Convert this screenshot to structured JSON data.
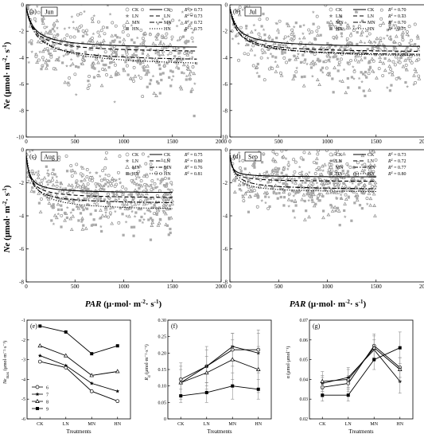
{
  "chart_data": [
    {
      "type": "scatter",
      "panel": "(a)",
      "month": "Jun",
      "xlim": [
        0,
        2000
      ],
      "ylim": [
        -10,
        0
      ],
      "xticks": [
        0,
        500,
        1000,
        1500,
        2000
      ],
      "yticks": [
        0,
        -2,
        -4,
        -6,
        -8,
        -10
      ],
      "legend_position": "top-right",
      "series": [
        {
          "name": "CK",
          "marker": "circle-open",
          "line": "solid",
          "r2": "0.73",
          "ne_max": 3.1,
          "alpha": 0.036,
          "rd": 0.11,
          "x_end": 1750
        },
        {
          "name": "LN",
          "marker": "star",
          "line": "dashed",
          "r2": "0.73",
          "ne_max": 3.4,
          "alpha": 0.038,
          "rd": 0.12,
          "x_end": 1750
        },
        {
          "name": "MN",
          "marker": "triangle-open",
          "line": "dashdot",
          "r2": "0.72",
          "ne_max": 4.1,
          "alpha": 0.039,
          "rd": 0.11,
          "x_end": 1750
        },
        {
          "name": "HN",
          "marker": "square-filled",
          "line": "dotted",
          "r2": "0.75",
          "ne_max": 4.6,
          "alpha": 0.032,
          "rd": 0.07,
          "x_end": 1750
        }
      ]
    },
    {
      "type": "scatter",
      "panel": "(b)",
      "month": "Jul",
      "xlim": [
        0,
        2000
      ],
      "ylim": [
        -10,
        0
      ],
      "xticks": [
        0,
        500,
        1000,
        1500,
        2000
      ],
      "yticks": [
        0,
        -2,
        -4,
        -6,
        -8,
        -10
      ],
      "legend_position": "top-right",
      "series": [
        {
          "name": "CK",
          "marker": "circle-open",
          "line": "solid",
          "r2": "0.70",
          "ne_max": 3.0,
          "alpha": 0.038,
          "rd": 0.12,
          "x_end": 1950
        },
        {
          "name": "LN",
          "marker": "star",
          "line": "dashed",
          "r2": "0.73",
          "ne_max": 3.3,
          "alpha": 0.041,
          "rd": 0.16,
          "x_end": 1950
        },
        {
          "name": "MN",
          "marker": "triangle-open",
          "line": "dashdot",
          "r2": "0.70",
          "ne_max": 3.6,
          "alpha": 0.04,
          "rd": 0.14,
          "x_end": 1950
        },
        {
          "name": "HN",
          "marker": "square-filled",
          "line": "dotted",
          "r2": "0.75",
          "ne_max": 3.9,
          "alpha": 0.032,
          "rd": 0.08,
          "x_end": 1950
        }
      ]
    },
    {
      "type": "scatter",
      "panel": "(c)",
      "month": "Aug",
      "xlim": [
        0,
        2000
      ],
      "ylim": [
        -8,
        0
      ],
      "xticks": [
        0,
        500,
        1000,
        1500,
        2000
      ],
      "yticks": [
        0,
        -2,
        -4,
        -6,
        -8
      ],
      "legend_position": "top-right",
      "series": [
        {
          "name": "CK",
          "marker": "circle-open",
          "line": "solid",
          "r2": "0.75",
          "ne_max": 2.2,
          "alpha": 0.056,
          "rd": 0.2,
          "x_end": 1500
        },
        {
          "name": "LN",
          "marker": "star",
          "line": "dashed",
          "r2": "0.80",
          "ne_max": 2.5,
          "alpha": 0.055,
          "rd": 0.21,
          "x_end": 1500
        },
        {
          "name": "MN",
          "marker": "triangle-open",
          "line": "dashdot",
          "r2": "0.76",
          "ne_max": 2.9,
          "alpha": 0.057,
          "rd": 0.18,
          "x_end": 1500
        },
        {
          "name": "HN",
          "marker": "square-filled",
          "line": "dotted",
          "r2": "0.81",
          "ne_max": 3.5,
          "alpha": 0.05,
          "rd": 0.1,
          "x_end": 1500
        }
      ]
    },
    {
      "type": "scatter",
      "panel": "(d)",
      "month": "Sep",
      "xlim": [
        0,
        2000
      ],
      "ylim": [
        -8,
        0
      ],
      "xticks": [
        0,
        500,
        1000,
        1500,
        2000
      ],
      "yticks": [
        0,
        -2,
        -4,
        -6,
        -8
      ],
      "legend_position": "top-right",
      "series": [
        {
          "name": "CK",
          "marker": "circle-open",
          "line": "solid",
          "r2": "0.73",
          "ne_max": 1.2,
          "alpha": 0.046,
          "rd": 0.21,
          "x_end": 1500
        },
        {
          "name": "LN",
          "marker": "star",
          "line": "dashed",
          "r2": "0.72",
          "ne_max": 1.5,
          "alpha": 0.045,
          "rd": 0.2,
          "x_end": 1500
        },
        {
          "name": "MN",
          "marker": "triangle-open",
          "line": "dashdot",
          "r2": "0.77",
          "ne_max": 2.1,
          "alpha": 0.039,
          "rd": 0.15,
          "x_end": 1500
        },
        {
          "name": "HN",
          "marker": "square-filled",
          "line": "dotted",
          "r2": "0.80",
          "ne_max": 2.4,
          "alpha": 0.056,
          "rd": 0.09,
          "x_end": 1500
        }
      ]
    },
    {
      "type": "line",
      "panel": "(e)",
      "categories": [
        "CK",
        "LN",
        "MN",
        "HN"
      ],
      "ylim": [
        -6,
        -1
      ],
      "yticks": [
        -1,
        -2,
        -3,
        -4,
        -5,
        -6
      ],
      "xlabel": "Treatments",
      "legend_position": "bottom-left",
      "series": [
        {
          "name": "6",
          "marker": "circle-open",
          "values": [
            -3.1,
            -3.4,
            -4.6,
            -5.1
          ]
        },
        {
          "name": "7",
          "marker": "star",
          "values": [
            -2.8,
            -3.3,
            -4.2,
            -4.6
          ]
        },
        {
          "name": "8",
          "marker": "triangle-open",
          "values": [
            -2.3,
            -2.8,
            -3.8,
            -3.6
          ]
        },
        {
          "name": "9",
          "marker": "square-filled",
          "values": [
            -1.3,
            -1.6,
            -2.7,
            -2.3
          ]
        }
      ]
    },
    {
      "type": "line",
      "panel": "(f)",
      "categories": [
        "CK",
        "LN",
        "MN",
        "HN"
      ],
      "ylim": [
        0.0,
        0.3
      ],
      "yticks": [
        0.0,
        0.05,
        0.1,
        0.15,
        0.2,
        0.25,
        0.3
      ],
      "xlabel": "Treatments",
      "series": [
        {
          "name": "6",
          "marker": "circle-open",
          "values": [
            0.12,
            0.16,
            0.21,
            0.21
          ],
          "err": [
            0.05,
            0.05,
            0.05,
            0.06
          ]
        },
        {
          "name": "7",
          "marker": "star",
          "values": [
            0.11,
            0.16,
            0.22,
            0.2
          ],
          "err": [
            0.04,
            0.06,
            0.04,
            0.06
          ]
        },
        {
          "name": "8",
          "marker": "triangle-open",
          "values": [
            0.11,
            0.14,
            0.18,
            0.15
          ],
          "err": [
            0.05,
            0.05,
            0.06,
            0.07
          ]
        },
        {
          "name": "9",
          "marker": "square-filled",
          "values": [
            0.07,
            0.08,
            0.1,
            0.09
          ],
          "err": [
            0.02,
            0.03,
            0.04,
            0.03
          ]
        }
      ]
    },
    {
      "type": "line",
      "panel": "(g)",
      "categories": [
        "CK",
        "LN",
        "MN",
        "HN"
      ],
      "ylim": [
        0.02,
        0.07
      ],
      "yticks": [
        0.02,
        0.03,
        0.04,
        0.05,
        0.06,
        0.07
      ],
      "xlabel": "Treatments",
      "series": [
        {
          "name": "6",
          "marker": "circle-open",
          "values": [
            0.036,
            0.038,
            0.057,
            0.046
          ],
          "err": [
            0.005,
            0.004,
            0.006,
            0.005
          ]
        },
        {
          "name": "7",
          "marker": "star",
          "values": [
            0.038,
            0.041,
            0.055,
            0.039
          ],
          "err": [
            0.004,
            0.005,
            0.005,
            0.006
          ]
        },
        {
          "name": "8",
          "marker": "triangle-open",
          "values": [
            0.039,
            0.04,
            0.056,
            0.045
          ],
          "err": [
            0.005,
            0.005,
            0.006,
            0.006
          ]
        },
        {
          "name": "9",
          "marker": "square-filled",
          "values": [
            0.032,
            0.032,
            0.05,
            0.056
          ],
          "err": [
            0.003,
            0.003,
            0.005,
            0.008
          ]
        }
      ]
    }
  ],
  "labels": {
    "ne_axis_main": "Ne",
    "ne_axis_unit": " (μmol· m",
    "ne_axis_unit_sup": "-2",
    "ne_axis_unit_end": "· s",
    "ne_axis_unit_sup2": "-1",
    "ne_axis_close": ")",
    "par_axis_main": "PAR",
    "par_axis_unit": " (μ·mol· m",
    "par_axis_unit_sup": "-2",
    "par_axis_unit_end": "· s",
    "par_axis_unit_sup2": "-1",
    "par_axis_close": ")",
    "r2_prefix": "R",
    "r2_sup": "2",
    "r2_eq": " = ",
    "e_ylabel_main": "Ne",
    "e_ylabel_sub": "max",
    "e_ylabel_unit": " (μmol·m⁻²·s⁻¹)",
    "f_ylabel_main": "R",
    "f_ylabel_sub": "d",
    "f_ylabel_unit": " (μmol·m⁻²·s⁻¹)",
    "g_ylabel": "α (μmol·μmol⁻¹)",
    "treatments": "Treatments"
  },
  "colors": {
    "ink": "#000000",
    "scatter_gray": "#8a8a8a",
    "scatter_light": "#aaaaaa"
  }
}
